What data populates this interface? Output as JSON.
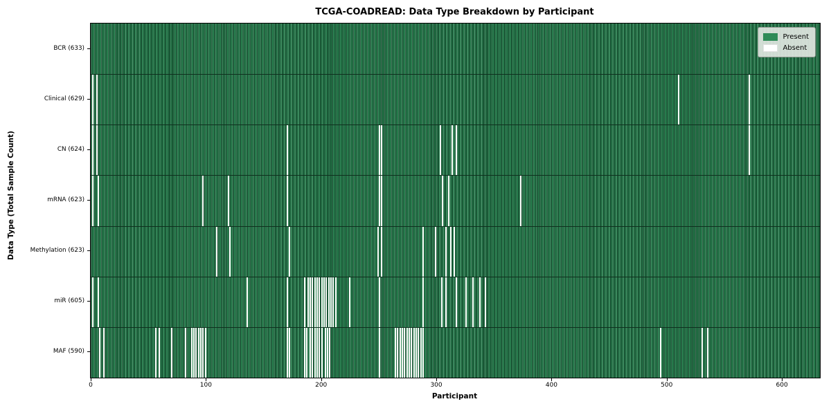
{
  "title": "TCGA-COADREAD: Data Type Breakdown by Participant",
  "xlabel": "Participant",
  "ylabel": "Data Type (Total Sample Count)",
  "legend": {
    "present_label": "Present",
    "absent_label": "Absent"
  },
  "colors": {
    "present": "#2e8b57",
    "absent": "#ffffff",
    "bar_edge": "#14482c",
    "legend_bg": "#e0e6e0",
    "spine": "#000000"
  },
  "chart_data": {
    "type": "heatmap",
    "title": "TCGA-COADREAD: Data Type Breakdown by Participant",
    "xlabel": "Participant",
    "ylabel": "Data Type (Total Sample Count)",
    "legend_entries": [
      "Present",
      "Absent"
    ],
    "legend_position": "upper right",
    "n_participants": 633,
    "x_ticks": [
      0,
      100,
      200,
      300,
      400,
      500,
      600
    ],
    "x_range": [
      0,
      633
    ],
    "grid": false,
    "rows": [
      {
        "name": "BCR",
        "label": "BCR (633)",
        "present_count": 633,
        "absent_count": 0,
        "absent_indices": []
      },
      {
        "name": "Clinical",
        "label": "Clinical (629)",
        "present_count": 629,
        "absent_count": 4,
        "absent_indices": [
          1,
          5,
          510,
          571
        ]
      },
      {
        "name": "CN",
        "label": "CN (624)",
        "present_count": 624,
        "absent_count": 9,
        "absent_indices": [
          1,
          5,
          170,
          250,
          252,
          303,
          313,
          317,
          571
        ]
      },
      {
        "name": "mRNA",
        "label": "mRNA (623)",
        "present_count": 623,
        "absent_count": 10,
        "absent_indices": [
          1,
          6,
          97,
          119,
          170,
          250,
          252,
          305,
          310,
          373
        ]
      },
      {
        "name": "Methylation",
        "label": "Methylation (623)",
        "present_count": 623,
        "absent_count": 10,
        "absent_indices": [
          109,
          120,
          172,
          249,
          252,
          288,
          299,
          308,
          312,
          315
        ]
      },
      {
        "name": "miR",
        "label": "miR (605)",
        "present_count": 605,
        "absent_count": 28,
        "absent_indices": [
          1,
          6,
          135,
          170,
          185,
          188,
          190,
          192,
          194,
          196,
          198,
          200,
          202,
          204,
          206,
          208,
          210,
          212,
          224,
          250,
          288,
          304,
          308,
          317,
          325,
          331,
          337,
          342
        ]
      },
      {
        "name": "MAF",
        "label": "MAF (590)",
        "present_count": 590,
        "absent_count": 43,
        "absent_indices": [
          7,
          11,
          56,
          59,
          70,
          82,
          87,
          89,
          91,
          93,
          95,
          97,
          99,
          170,
          172,
          185,
          187,
          190,
          192,
          194,
          196,
          198,
          200,
          203,
          205,
          207,
          250,
          264,
          266,
          268,
          270,
          272,
          274,
          276,
          278,
          280,
          282,
          284,
          286,
          288,
          494,
          530,
          535
        ]
      }
    ]
  }
}
